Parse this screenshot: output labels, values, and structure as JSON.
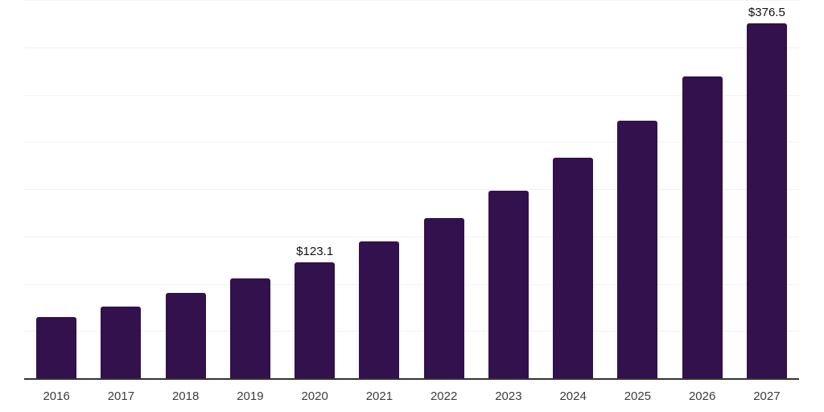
{
  "chart_data": {
    "type": "bar",
    "title": "",
    "xlabel": "",
    "ylabel": "",
    "categories": [
      "2016",
      "2017",
      "2018",
      "2019",
      "2020",
      "2021",
      "2022",
      "2023",
      "2024",
      "2025",
      "2026",
      "2027"
    ],
    "values": [
      65.5,
      76.6,
      90.8,
      106.4,
      123.1,
      145.5,
      170.2,
      199.4,
      234.0,
      272.9,
      320.0,
      376.5
    ],
    "data_labels": [
      "",
      "",
      "",
      "",
      "$123.1",
      "",
      "",
      "",
      "",
      "",
      "",
      "$376.5"
    ],
    "ylim": [
      0,
      400
    ],
    "gridline_step": 50,
    "grid": "horizontal-only",
    "legend": "none",
    "y_axis_tick_labels": "none",
    "bar_color": "#32114d",
    "axis_line_color": "#333333",
    "gridline_color": "#f2f2f2",
    "tick_label_color": "#3d3d3d",
    "data_label_color": "#111111"
  }
}
